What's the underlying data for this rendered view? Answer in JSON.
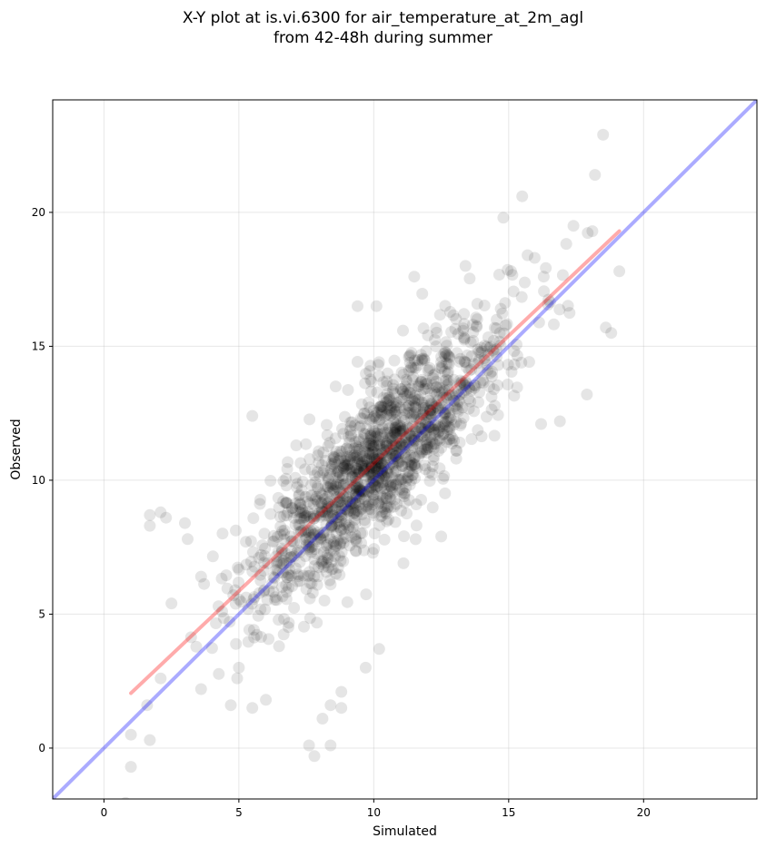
{
  "chart_data": {
    "type": "scatter",
    "title_line1": "X-Y plot at is.vi.6300 for air_temperature_at_2m_agl",
    "title_line2": "from 42-48h during summer",
    "xlabel": "Simulated",
    "ylabel": "Observed",
    "xlim": [
      -1.9,
      24.2
    ],
    "ylim": [
      -1.9,
      24.2
    ],
    "xticks": [
      0,
      5,
      10,
      15,
      20
    ],
    "yticks": [
      0,
      5,
      10,
      15,
      20
    ],
    "grid": true,
    "point_color": "#000000",
    "point_alpha": 0.1,
    "identity_line": {
      "color": "#0000ff",
      "alpha": 0.33,
      "x": [
        -1.9,
        24.2
      ],
      "y": [
        -1.9,
        24.2
      ]
    },
    "regression_line": {
      "color": "#ff0000",
      "alpha": 0.33,
      "x": [
        1.0,
        19.1
      ],
      "y": [
        2.05,
        19.3
      ]
    },
    "cloud": {
      "count": 1500,
      "center": [
        10.2,
        10.8
      ],
      "slope": 0.95,
      "x_sd": 2.4,
      "resid_sd": 1.4
    },
    "outliers": [
      {
        "x": 18.5,
        "y": 22.9
      },
      {
        "x": 18.2,
        "y": 21.4
      },
      {
        "x": 15.5,
        "y": 20.6
      },
      {
        "x": 14.8,
        "y": 19.8
      },
      {
        "x": 17.4,
        "y": 19.5
      },
      {
        "x": 18.1,
        "y": 19.3
      },
      {
        "x": 1.0,
        "y": -0.7
      },
      {
        "x": 1.0,
        "y": 0.5
      },
      {
        "x": 1.7,
        "y": 0.3
      },
      {
        "x": 7.8,
        "y": -0.3
      },
      {
        "x": 7.6,
        "y": 0.1
      },
      {
        "x": 8.4,
        "y": 0.1
      },
      {
        "x": 8.1,
        "y": 1.1
      },
      {
        "x": 8.8,
        "y": 1.5
      },
      {
        "x": 8.4,
        "y": 1.6
      },
      {
        "x": 8.8,
        "y": 2.1
      },
      {
        "x": 1.6,
        "y": 1.6
      },
      {
        "x": 2.1,
        "y": 2.6
      },
      {
        "x": 1.7,
        "y": 8.3
      },
      {
        "x": 1.7,
        "y": 8.7
      },
      {
        "x": 2.1,
        "y": 8.8
      },
      {
        "x": 2.3,
        "y": 8.6
      },
      {
        "x": 5.5,
        "y": 12.4
      },
      {
        "x": 2.5,
        "y": 5.4
      },
      {
        "x": 3.6,
        "y": 2.2
      },
      {
        "x": 5.0,
        "y": 3.0
      },
      {
        "x": 9.7,
        "y": 3.0
      },
      {
        "x": 10.2,
        "y": 3.7
      },
      {
        "x": 6.0,
        "y": 1.8
      },
      {
        "x": 4.7,
        "y": 1.6
      },
      {
        "x": 5.5,
        "y": 1.5
      },
      {
        "x": 17.9,
        "y": 13.2
      },
      {
        "x": 16.2,
        "y": 12.1
      },
      {
        "x": 16.9,
        "y": 12.2
      },
      {
        "x": 19.1,
        "y": 17.8
      },
      {
        "x": 18.8,
        "y": 15.5
      },
      {
        "x": 18.6,
        "y": 15.7
      },
      {
        "x": 12.5,
        "y": 7.9
      },
      {
        "x": 11.1,
        "y": 6.9
      },
      {
        "x": 9.4,
        "y": 16.5
      },
      {
        "x": 10.1,
        "y": 16.5
      },
      {
        "x": 11.5,
        "y": 17.6
      },
      {
        "x": 13.4,
        "y": 18.0
      },
      {
        "x": 3.0,
        "y": 8.4
      },
      {
        "x": 3.1,
        "y": 7.8
      },
      {
        "x": 3.6,
        "y": 6.4
      },
      {
        "x": 15.7,
        "y": 18.4
      },
      {
        "x": 16.3,
        "y": 17.6
      }
    ]
  }
}
